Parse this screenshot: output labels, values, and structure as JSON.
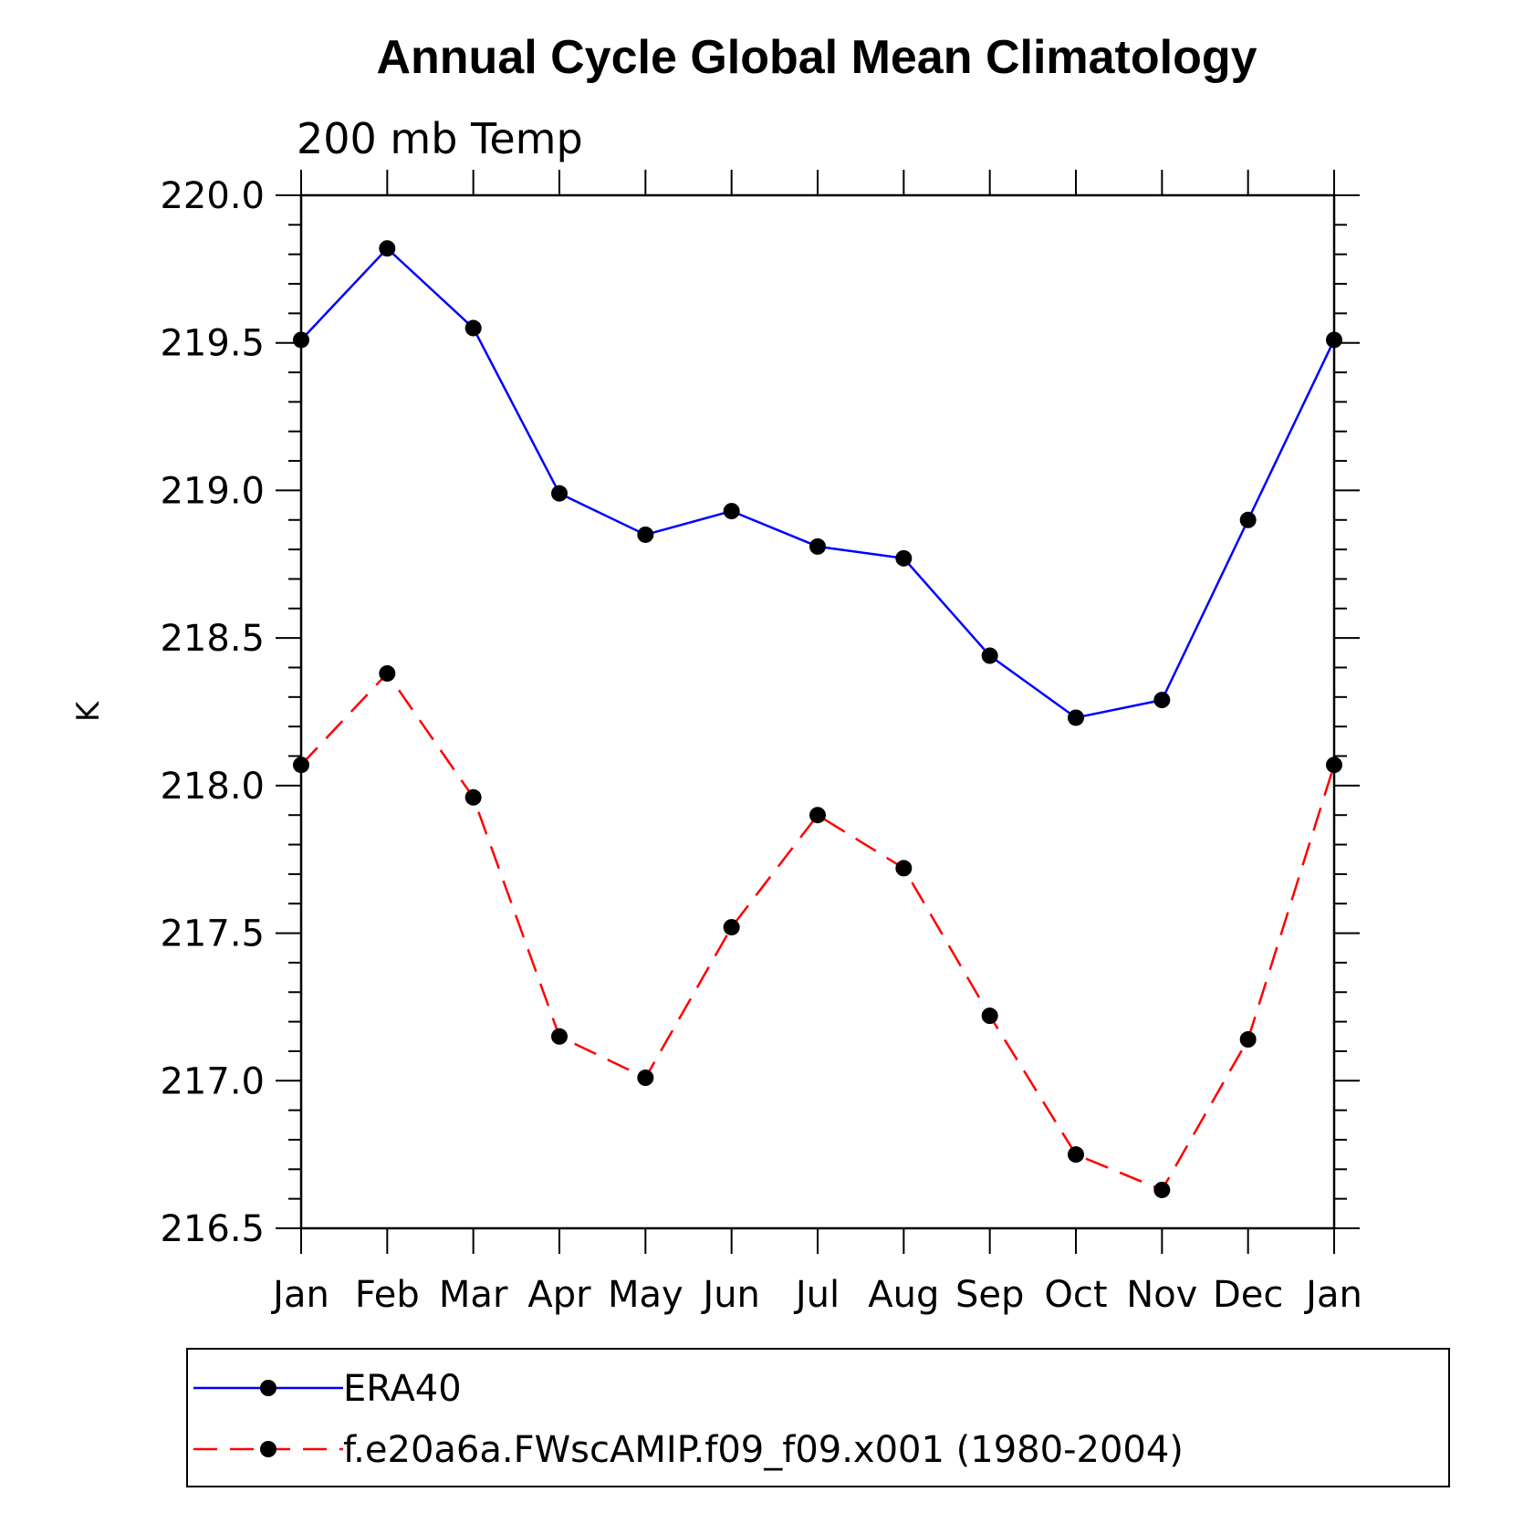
{
  "chart_data": {
    "type": "line",
    "title": "Annual Cycle Global Mean Climatology",
    "subtitle": "200 mb Temp",
    "xlabel": "",
    "ylabel": "K",
    "categories": [
      "Jan",
      "Feb",
      "Mar",
      "Apr",
      "May",
      "Jun",
      "Jul",
      "Aug",
      "Sep",
      "Oct",
      "Nov",
      "Dec",
      "Jan"
    ],
    "ylim": [
      216.5,
      220.0
    ],
    "yticks": [
      "216.5",
      "217.0",
      "217.5",
      "218.0",
      "218.5",
      "219.0",
      "219.5",
      "220.0"
    ],
    "grid": false,
    "legend_position": "bottom",
    "series": [
      {
        "name": "ERA40",
        "color": "#0000ff",
        "line_style": "solid",
        "marker": "filled-circle",
        "values": [
          219.51,
          219.82,
          219.55,
          218.99,
          218.85,
          218.93,
          218.81,
          218.77,
          218.44,
          218.23,
          218.29,
          218.9,
          219.51
        ]
      },
      {
        "name": "f.e20a6a.FWscAMIP.f09_f09.x001 (1980-2004)",
        "color": "#ff0000",
        "line_style": "dashed",
        "marker": "filled-circle",
        "values": [
          218.07,
          218.38,
          217.96,
          217.15,
          217.01,
          217.52,
          217.9,
          217.72,
          217.22,
          216.75,
          216.63,
          217.14,
          218.07
        ]
      }
    ]
  }
}
